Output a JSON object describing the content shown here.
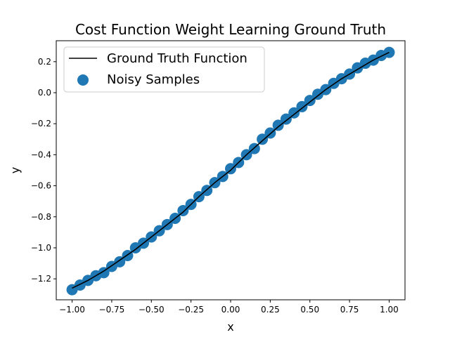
{
  "chart_data": {
    "type": "scatter",
    "title": "Cost Function Weight Learning Ground Truth",
    "xlabel": "x",
    "ylabel": "y",
    "xlim": [
      -1.1,
      1.1
    ],
    "ylim": [
      -1.335,
      0.335
    ],
    "xticks": [
      -1.0,
      -0.75,
      -0.5,
      -0.25,
      0.0,
      0.25,
      0.5,
      0.75,
      1.0
    ],
    "xtick_labels": [
      "−1.00",
      "−0.75",
      "−0.50",
      "−0.25",
      "0.00",
      "0.25",
      "0.50",
      "0.75",
      "1.00"
    ],
    "yticks": [
      -1.2,
      -1.0,
      -0.8,
      -0.6,
      -0.4,
      -0.2,
      0.0,
      0.2
    ],
    "ytick_labels": [
      "−1.2",
      "−1.0",
      "−0.8",
      "−0.6",
      "−0.4",
      "−0.2",
      "0.0",
      "0.2"
    ],
    "grid": false,
    "legend_position": "top-left",
    "series": [
      {
        "name": "Ground Truth Function",
        "kind": "line",
        "color": "#000000",
        "x": [
          -1.0,
          -0.9,
          -0.8,
          -0.7,
          -0.6,
          -0.5,
          -0.4,
          -0.3,
          -0.2,
          -0.1,
          0.0,
          0.1,
          0.2,
          0.3,
          0.4,
          0.5,
          0.6,
          0.7,
          0.8,
          0.9,
          1.0
        ],
        "y": [
          -1.26,
          -1.21,
          -1.15,
          -1.08,
          -1.01,
          -0.93,
          -0.85,
          -0.77,
          -0.67,
          -0.58,
          -0.5,
          -0.4,
          -0.31,
          -0.22,
          -0.14,
          -0.06,
          0.02,
          0.09,
          0.15,
          0.21,
          0.26
        ]
      },
      {
        "name": "Noisy Samples",
        "kind": "scatter",
        "color": "#1f77b4",
        "x": [
          -1.0,
          -0.95,
          -0.9,
          -0.85,
          -0.8,
          -0.75,
          -0.7,
          -0.65,
          -0.6,
          -0.55,
          -0.5,
          -0.45,
          -0.4,
          -0.35,
          -0.3,
          -0.25,
          -0.2,
          -0.15,
          -0.1,
          -0.05,
          0.0,
          0.05,
          0.1,
          0.15,
          0.2,
          0.25,
          0.3,
          0.35,
          0.4,
          0.45,
          0.5,
          0.55,
          0.6,
          0.65,
          0.7,
          0.75,
          0.8,
          0.85,
          0.9,
          0.95,
          1.0
        ],
        "y": [
          -1.27,
          -1.24,
          -1.21,
          -1.18,
          -1.16,
          -1.12,
          -1.09,
          -1.05,
          -1.0,
          -0.97,
          -0.93,
          -0.89,
          -0.85,
          -0.81,
          -0.76,
          -0.72,
          -0.67,
          -0.63,
          -0.58,
          -0.54,
          -0.49,
          -0.45,
          -0.4,
          -0.36,
          -0.3,
          -0.26,
          -0.21,
          -0.17,
          -0.13,
          -0.09,
          -0.05,
          -0.01,
          0.02,
          0.06,
          0.09,
          0.12,
          0.16,
          0.19,
          0.21,
          0.24,
          0.26
        ]
      }
    ]
  }
}
